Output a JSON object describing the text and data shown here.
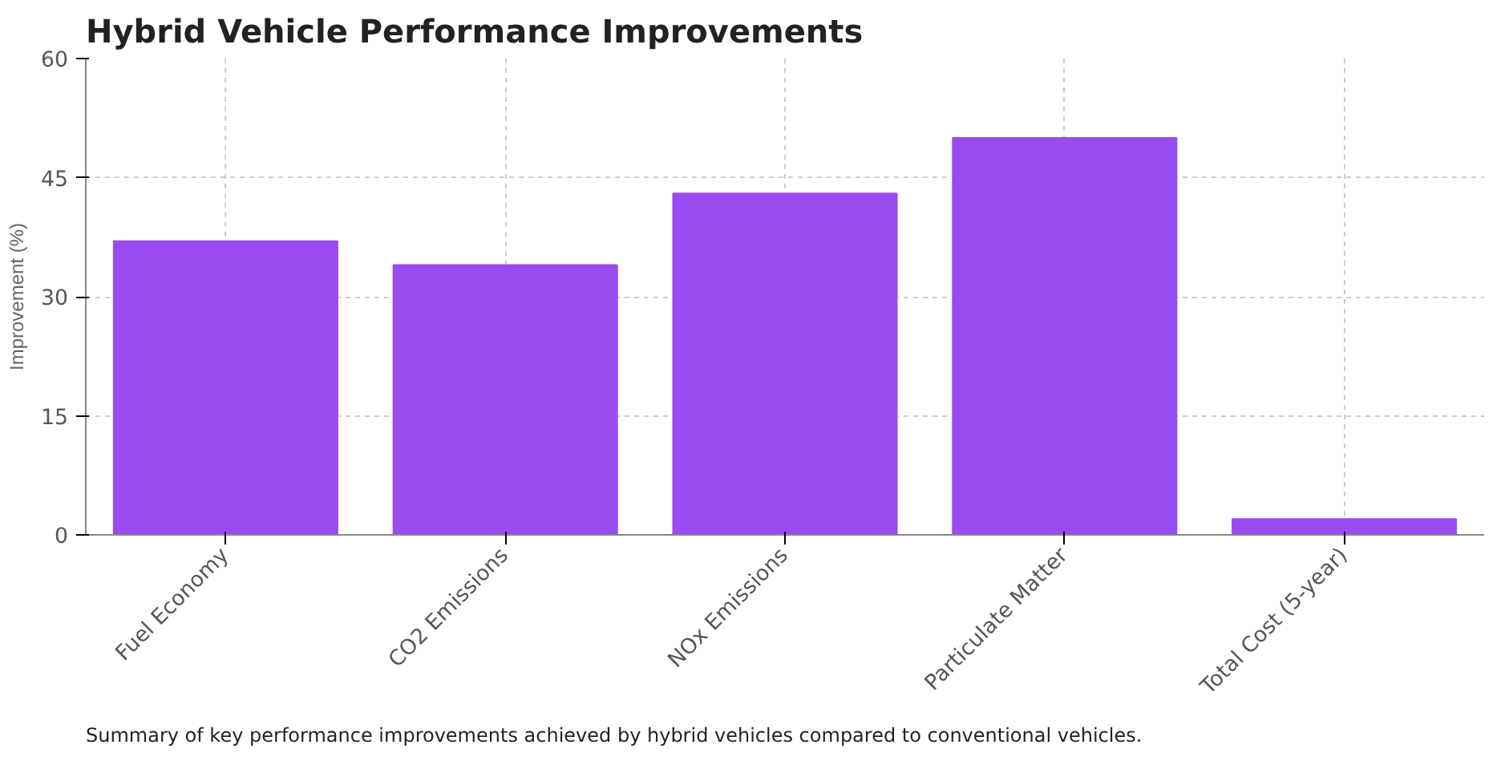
{
  "chart_data": {
    "type": "bar",
    "title": "Hybrid Vehicle Performance Improvements",
    "ylabel": "Improvement (%)",
    "categories": [
      "Fuel Economy",
      "CO2 Emissions",
      "NOx Emissions",
      "Particulate Matter",
      "Total Cost (5-year)"
    ],
    "values": [
      37,
      34,
      43,
      50,
      2
    ],
    "color": "#9a4bef",
    "ylim": [
      0,
      60
    ],
    "yticks": [
      0,
      15,
      30,
      45,
      60
    ],
    "grid": true,
    "annotations": [
      "Summary of key performance improvements achieved by hybrid vehicles compared to conventional vehicles."
    ]
  }
}
